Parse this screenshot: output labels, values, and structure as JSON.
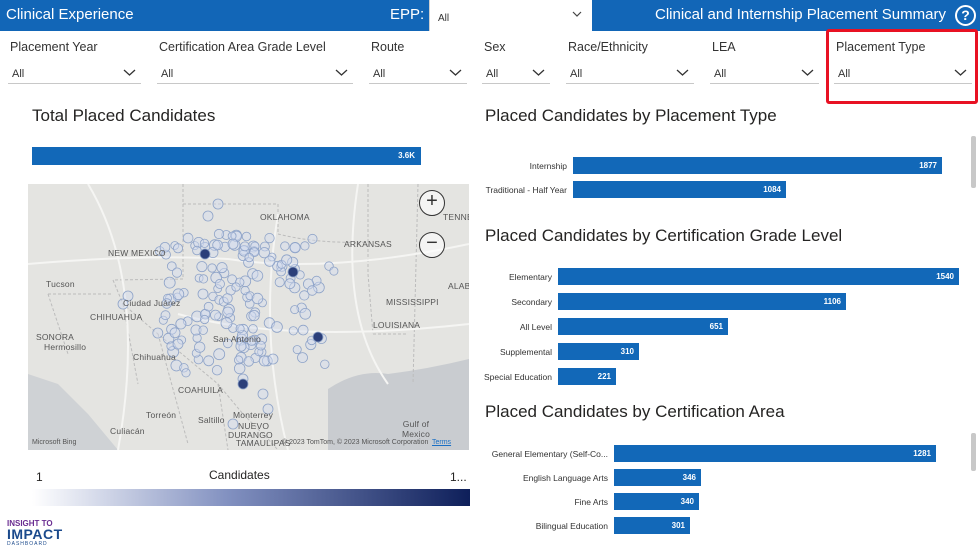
{
  "header": {
    "title_left": "Clinical Experience",
    "epp_label": "EPP:",
    "epp_value": "All",
    "title_right": "Clinical and Internship Placement Summary",
    "help_label": "?"
  },
  "filters": [
    {
      "label": "Placement Year",
      "value": "All"
    },
    {
      "label": "Certification Area Grade Level",
      "value": "All"
    },
    {
      "label": "Route",
      "value": "All"
    },
    {
      "label": "Sex",
      "value": "All"
    },
    {
      "label": "Race/Ethnicity",
      "value": "All"
    },
    {
      "label": "LEA",
      "value": "All"
    },
    {
      "label": "Placement Type",
      "value": "All"
    }
  ],
  "total": {
    "title": "Total Placed Candidates",
    "value_label": "3.6K"
  },
  "map": {
    "labels": [
      "OKLAHOMA",
      "NEW MEXICO",
      "ARKANSAS",
      "TENNE",
      "ALAB",
      "MISSISSIPPI",
      "LOUISIANA",
      "Tucson",
      "Ciudad Juárez",
      "CHIHUAHUA",
      "SONORA",
      "Hermosillo",
      "Chihuahua",
      "COAHUILA",
      "San Antonio",
      "Torreón",
      "Saltillo",
      "Monterrey",
      "NUEVO",
      "Culiacán",
      "DURANGO",
      "TAMAULIPAS",
      "Gulf of Mexico"
    ],
    "attribution": "© 2023 TomTom, © 2023 Microsoft Corporation",
    "terms": "Terms",
    "bing": "Microsoft Bing",
    "zoom_in": "+",
    "zoom_out": "−"
  },
  "legend": {
    "title": "Candidates",
    "min": "1",
    "max": "1..."
  },
  "logo": {
    "line1": "INSIGHT TO",
    "line2": "IMPACT",
    "line3": "DASHBOARD"
  },
  "chart_data": [
    {
      "type": "bar",
      "title": "Placed Candidates by Placement Type",
      "categories": [
        "Internship",
        "Traditional - Half Year"
      ],
      "values": [
        1877,
        1084
      ]
    },
    {
      "type": "bar",
      "title": "Placed Candidates by Certification Grade Level",
      "categories": [
        "Elementary",
        "Secondary",
        "All Level",
        "Supplemental",
        "Special Education"
      ],
      "values": [
        1540,
        1106,
        651,
        310,
        221
      ]
    },
    {
      "type": "bar",
      "title": "Placed Candidates by Certification Area",
      "categories": [
        "General Elementary (Self-Co...",
        "English Language Arts",
        "Fine Arts",
        "Bilingual Education"
      ],
      "values": [
        1281,
        346,
        340,
        301
      ]
    }
  ]
}
